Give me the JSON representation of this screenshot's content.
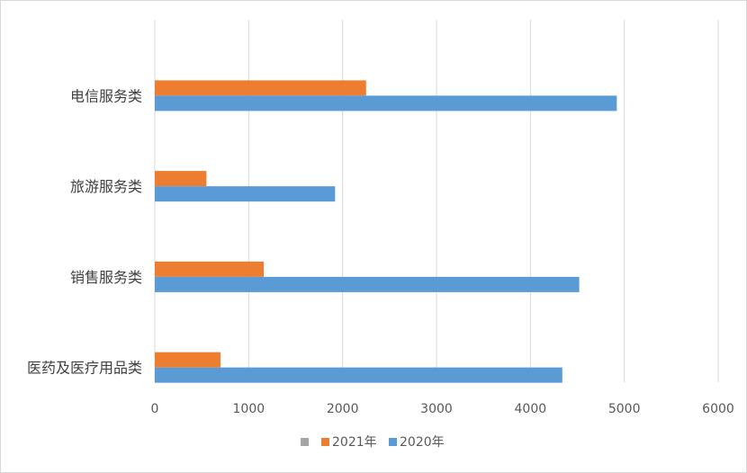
{
  "chart_data": {
    "type": "bar",
    "orientation": "horizontal",
    "title": "",
    "xlabel": "",
    "ylabel": "",
    "categories": [
      "电信服务类",
      "旅游服务类",
      "销售服务类",
      "医药及医疗用品类"
    ],
    "series": [
      {
        "name": "2021年",
        "color": "#ed7d31",
        "values": [
          2250,
          550,
          1160,
          700
        ]
      },
      {
        "name": "2020年",
        "color": "#5b9bd5",
        "values": [
          4920,
          1920,
          4520,
          4340
        ]
      }
    ],
    "xlim": [
      0,
      6000
    ],
    "xticks": [
      "0",
      "1000",
      "2000",
      "3000",
      "4000",
      "5000",
      "6000"
    ],
    "grid": true,
    "legend": {
      "placement": "bottom",
      "entries": [
        {
          "label": "",
          "color": "#a5a5a5"
        },
        {
          "label": "2021年",
          "color": "#ed7d31"
        },
        {
          "label": "2020年",
          "color": "#5b9bd5"
        }
      ]
    }
  }
}
